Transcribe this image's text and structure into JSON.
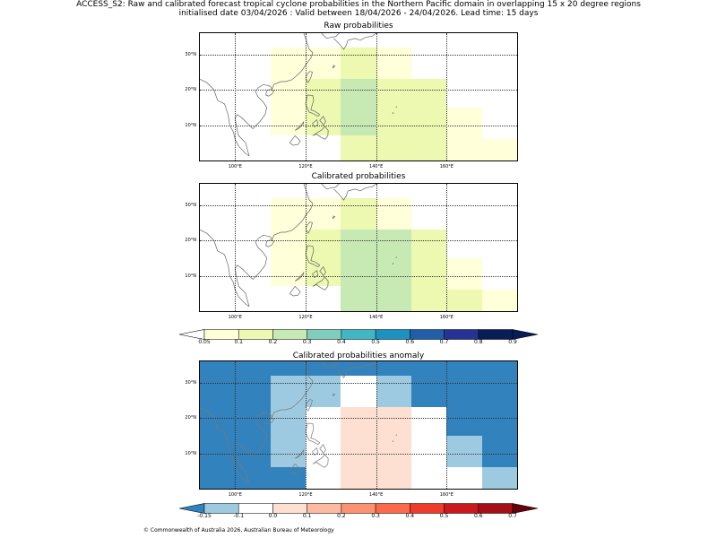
{
  "header": {
    "title_line1": "ACCESS_S2: Raw and calibrated forecast tropical cyclone probabilities in the Northern Pacific domain in overlapping 15 x 20 degree regions",
    "title_line2": "initialised date 03/04/2026 :  Valid between 18/04/2026 - 24/04/2026. Lead time: 15 days"
  },
  "panels": [
    {
      "title": "Raw probabilities",
      "cells": [
        {
          "lon": [
            110,
            120
          ],
          "lat": [
            7,
            32
          ],
          "color": "#ffffd9"
        },
        {
          "lon": [
            120,
            130
          ],
          "lat": [
            7,
            23
          ],
          "color": "#edf8b1"
        },
        {
          "lon": [
            120,
            130
          ],
          "lat": [
            23,
            32
          ],
          "color": "#ffffd9"
        },
        {
          "lon": [
            130,
            140
          ],
          "lat": [
            23,
            32
          ],
          "color": "#edf8b1"
        },
        {
          "lon": [
            130,
            140
          ],
          "lat": [
            7,
            23
          ],
          "color": "#c7e9b4"
        },
        {
          "lon": [
            130,
            140
          ],
          "lat": [
            0,
            7
          ],
          "color": "#edf8b1"
        },
        {
          "lon": [
            140,
            150
          ],
          "lat": [
            23,
            32
          ],
          "color": "#ffffd9"
        },
        {
          "lon": [
            140,
            160
          ],
          "lat": [
            0,
            23
          ],
          "color": "#edf8b1"
        },
        {
          "lon": [
            160,
            170
          ],
          "lat": [
            0,
            15
          ],
          "color": "#ffffd9"
        },
        {
          "lon": [
            170,
            180
          ],
          "lat": [
            0,
            6
          ],
          "color": "#ffffd9"
        }
      ]
    },
    {
      "title": "Calibrated probabilities",
      "cells": [
        {
          "lon": [
            110,
            120
          ],
          "lat": [
            7,
            32
          ],
          "color": "#ffffd9"
        },
        {
          "lon": [
            120,
            130
          ],
          "lat": [
            7,
            23
          ],
          "color": "#edf8b1"
        },
        {
          "lon": [
            120,
            130
          ],
          "lat": [
            23,
            32
          ],
          "color": "#ffffd9"
        },
        {
          "lon": [
            130,
            140
          ],
          "lat": [
            23,
            32
          ],
          "color": "#edf8b1"
        },
        {
          "lon": [
            130,
            150
          ],
          "lat": [
            0,
            23
          ],
          "color": "#c7e9b4"
        },
        {
          "lon": [
            140,
            150
          ],
          "lat": [
            23,
            32
          ],
          "color": "#ffffd9"
        },
        {
          "lon": [
            150,
            160
          ],
          "lat": [
            0,
            23
          ],
          "color": "#edf8b1"
        },
        {
          "lon": [
            160,
            170
          ],
          "lat": [
            6,
            15
          ],
          "color": "#ffffd9"
        },
        {
          "lon": [
            160,
            170
          ],
          "lat": [
            0,
            6
          ],
          "color": "#edf8b1"
        },
        {
          "lon": [
            170,
            180
          ],
          "lat": [
            0,
            6
          ],
          "color": "#ffffd9"
        }
      ]
    },
    {
      "title": "Calibrated probabilities anomaly",
      "background": "#3182bd",
      "cells": [
        {
          "lon": [
            110,
            120
          ],
          "lat": [
            6,
            32
          ],
          "color": "#9ecae1"
        },
        {
          "lon": [
            120,
            130
          ],
          "lat": [
            23,
            32
          ],
          "color": "#9ecae1"
        },
        {
          "lon": [
            120,
            130
          ],
          "lat": [
            0,
            23
          ],
          "color": "#ffffff"
        },
        {
          "lon": [
            130,
            140
          ],
          "lat": [
            23,
            32
          ],
          "color": "#ffffff"
        },
        {
          "lon": [
            130,
            150
          ],
          "lat": [
            0,
            23
          ],
          "color": "#fee0d2"
        },
        {
          "lon": [
            140,
            150
          ],
          "lat": [
            23,
            32
          ],
          "color": "#9ecae1"
        },
        {
          "lon": [
            150,
            160
          ],
          "lat": [
            0,
            23
          ],
          "color": "#ffffff"
        },
        {
          "lon": [
            160,
            170
          ],
          "lat": [
            6,
            15
          ],
          "color": "#9ecae1"
        },
        {
          "lon": [
            160,
            170
          ],
          "lat": [
            0,
            6
          ],
          "color": "#ffffff"
        },
        {
          "lon": [
            170,
            180
          ],
          "lat": [
            0,
            6
          ],
          "color": "#9ecae1"
        }
      ]
    }
  ],
  "axes": {
    "lon_range": [
      90,
      180
    ],
    "lat_range": [
      0,
      36
    ],
    "lon_ticks": [
      {
        "v": 100,
        "label": "100°E"
      },
      {
        "v": 120,
        "label": "120°E"
      },
      {
        "v": 140,
        "label": "140°E"
      },
      {
        "v": 160,
        "label": "160°E"
      }
    ],
    "lat_ticks": [
      {
        "v": 10,
        "label": "10°N"
      },
      {
        "v": 20,
        "label": "20°N"
      },
      {
        "v": 30,
        "label": "30°N"
      }
    ]
  },
  "colorbars": [
    {
      "name": "probability",
      "under": "#ffffff",
      "over": "#081d58",
      "colors": [
        "#ffffd9",
        "#edf8b1",
        "#c7e9b4",
        "#7fcdbb",
        "#41b6c4",
        "#1d91c0",
        "#225ea8",
        "#253494",
        "#081d58"
      ],
      "labels": [
        "0.05",
        "0.1",
        "0.2",
        "0.3",
        "0.4",
        "0.5",
        "0.6",
        "0.7",
        "0.8",
        "0.9"
      ]
    },
    {
      "name": "anomaly",
      "under": "#3182bd",
      "over": "#67000d",
      "colors": [
        "#9ecae1",
        "#ffffff",
        "#fee0d2",
        "#fcbba1",
        "#fc9272",
        "#fb6a4a",
        "#ef3b2c",
        "#cb181d",
        "#a50f15"
      ],
      "labels": [
        "-0.15",
        "-0.1",
        "0.0",
        "0.1",
        "0.2",
        "0.3",
        "0.4",
        "0.5",
        "0.6",
        "0.7"
      ]
    }
  ],
  "footer": {
    "copyright": "© Commonwealth of Australia 2026, Australian Bureau of Meteorology"
  }
}
